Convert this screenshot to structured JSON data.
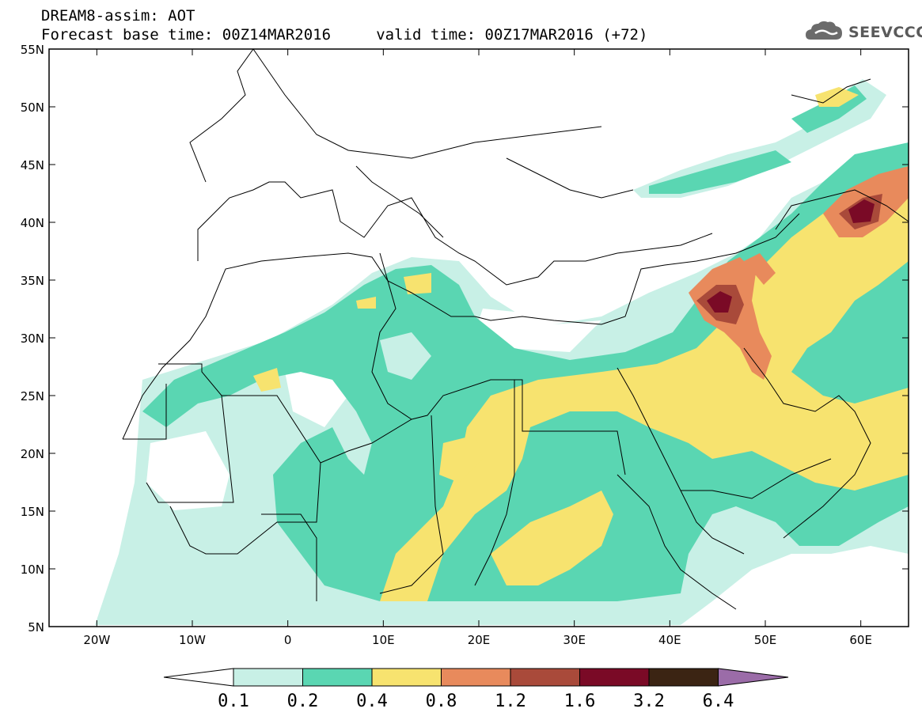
{
  "header": {
    "title_line1": "DREAM8-assim: AOT",
    "title_line2": "Forecast base time: 00Z14MAR2016     valid time: 00Z17MAR2016 (+72)",
    "logo_text": "SEEVCCC"
  },
  "map": {
    "lon_range": [
      -25,
      65
    ],
    "lat_range": [
      5,
      55
    ],
    "lon_ticks": [
      "20W",
      "10W",
      "0",
      "10E",
      "20E",
      "30E",
      "40E",
      "50E",
      "60E"
    ],
    "lat_ticks": [
      "55N",
      "50N",
      "45N",
      "40N",
      "35N",
      "30N",
      "25N",
      "20N",
      "15N",
      "10N",
      "5N"
    ]
  },
  "colorbar": {
    "labels": [
      "0.1",
      "0.2",
      "0.4",
      "0.8",
      "1.2",
      "1.6",
      "3.2",
      "6.4"
    ],
    "colors": [
      "#ffffff",
      "#c8f0e6",
      "#5ad6b2",
      "#f7e36f",
      "#e88a5c",
      "#a94a3a",
      "#7a0a26",
      "#3b2413",
      "#9b6ca8"
    ]
  }
}
